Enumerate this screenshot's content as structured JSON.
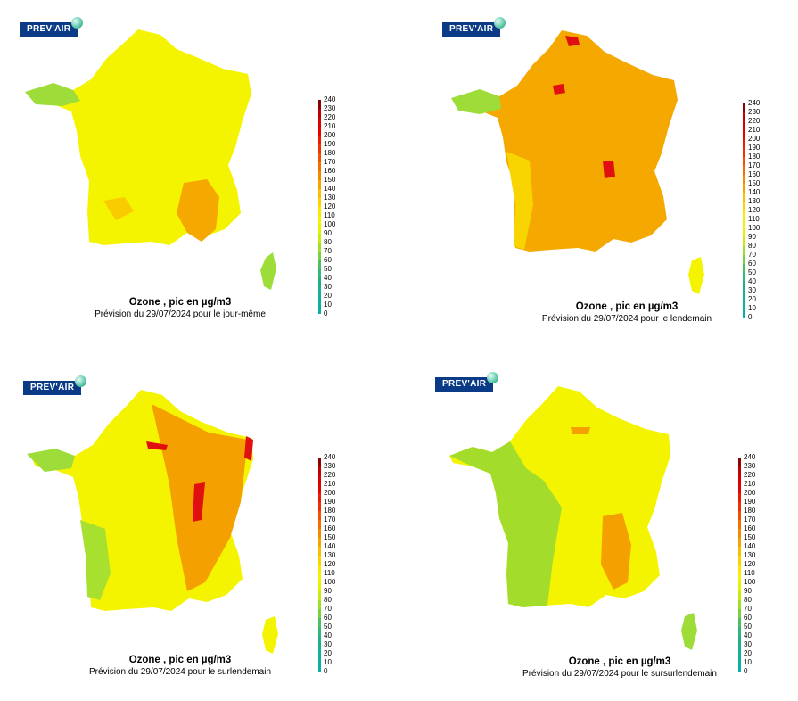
{
  "brand": "PREV'AIR",
  "scale": {
    "ticks": [
      "240",
      "230",
      "220",
      "210",
      "200",
      "190",
      "180",
      "170",
      "160",
      "150",
      "140",
      "130",
      "120",
      "110",
      "100",
      "90",
      "80",
      "70",
      "60",
      "50",
      "40",
      "30",
      "20",
      "10",
      "0"
    ],
    "colors": [
      "#8b0000",
      "#c00000",
      "#d80000",
      "#e80000",
      "#ee1a00",
      "#f23000",
      "#f45000",
      "#f46e00",
      "#f48a00",
      "#f8a400",
      "#fbbe00",
      "#fdd400",
      "#fde800",
      "#f4f400",
      "#e4f400",
      "#c8ec10",
      "#a0e028",
      "#7ad040",
      "#4cc060",
      "#30b878",
      "#20b088",
      "#18b098",
      "#10b0a0",
      "#08b0a8"
    ]
  },
  "panels": [
    {
      "title": "Ozone , pic en µg/m3",
      "subtitle": "Prévision du 29/07/2024 pour le jour-même"
    },
    {
      "title": "Ozone , pic en µg/m3",
      "subtitle": "Prévision du 29/07/2024 pour le lendemain"
    },
    {
      "title": "Ozone , pic en µg/m3",
      "subtitle": "Prévision du 29/07/2024 pour le surlendemain"
    },
    {
      "title": "Ozone , pic en µg/m3",
      "subtitle": "Prévision du 29/07/2024 pour le sursurlendemain"
    }
  ],
  "colors": {
    "low_green": "#9edc3a",
    "yellow": "#f4f400",
    "orange": "#f4a000",
    "red": "#e01010"
  }
}
